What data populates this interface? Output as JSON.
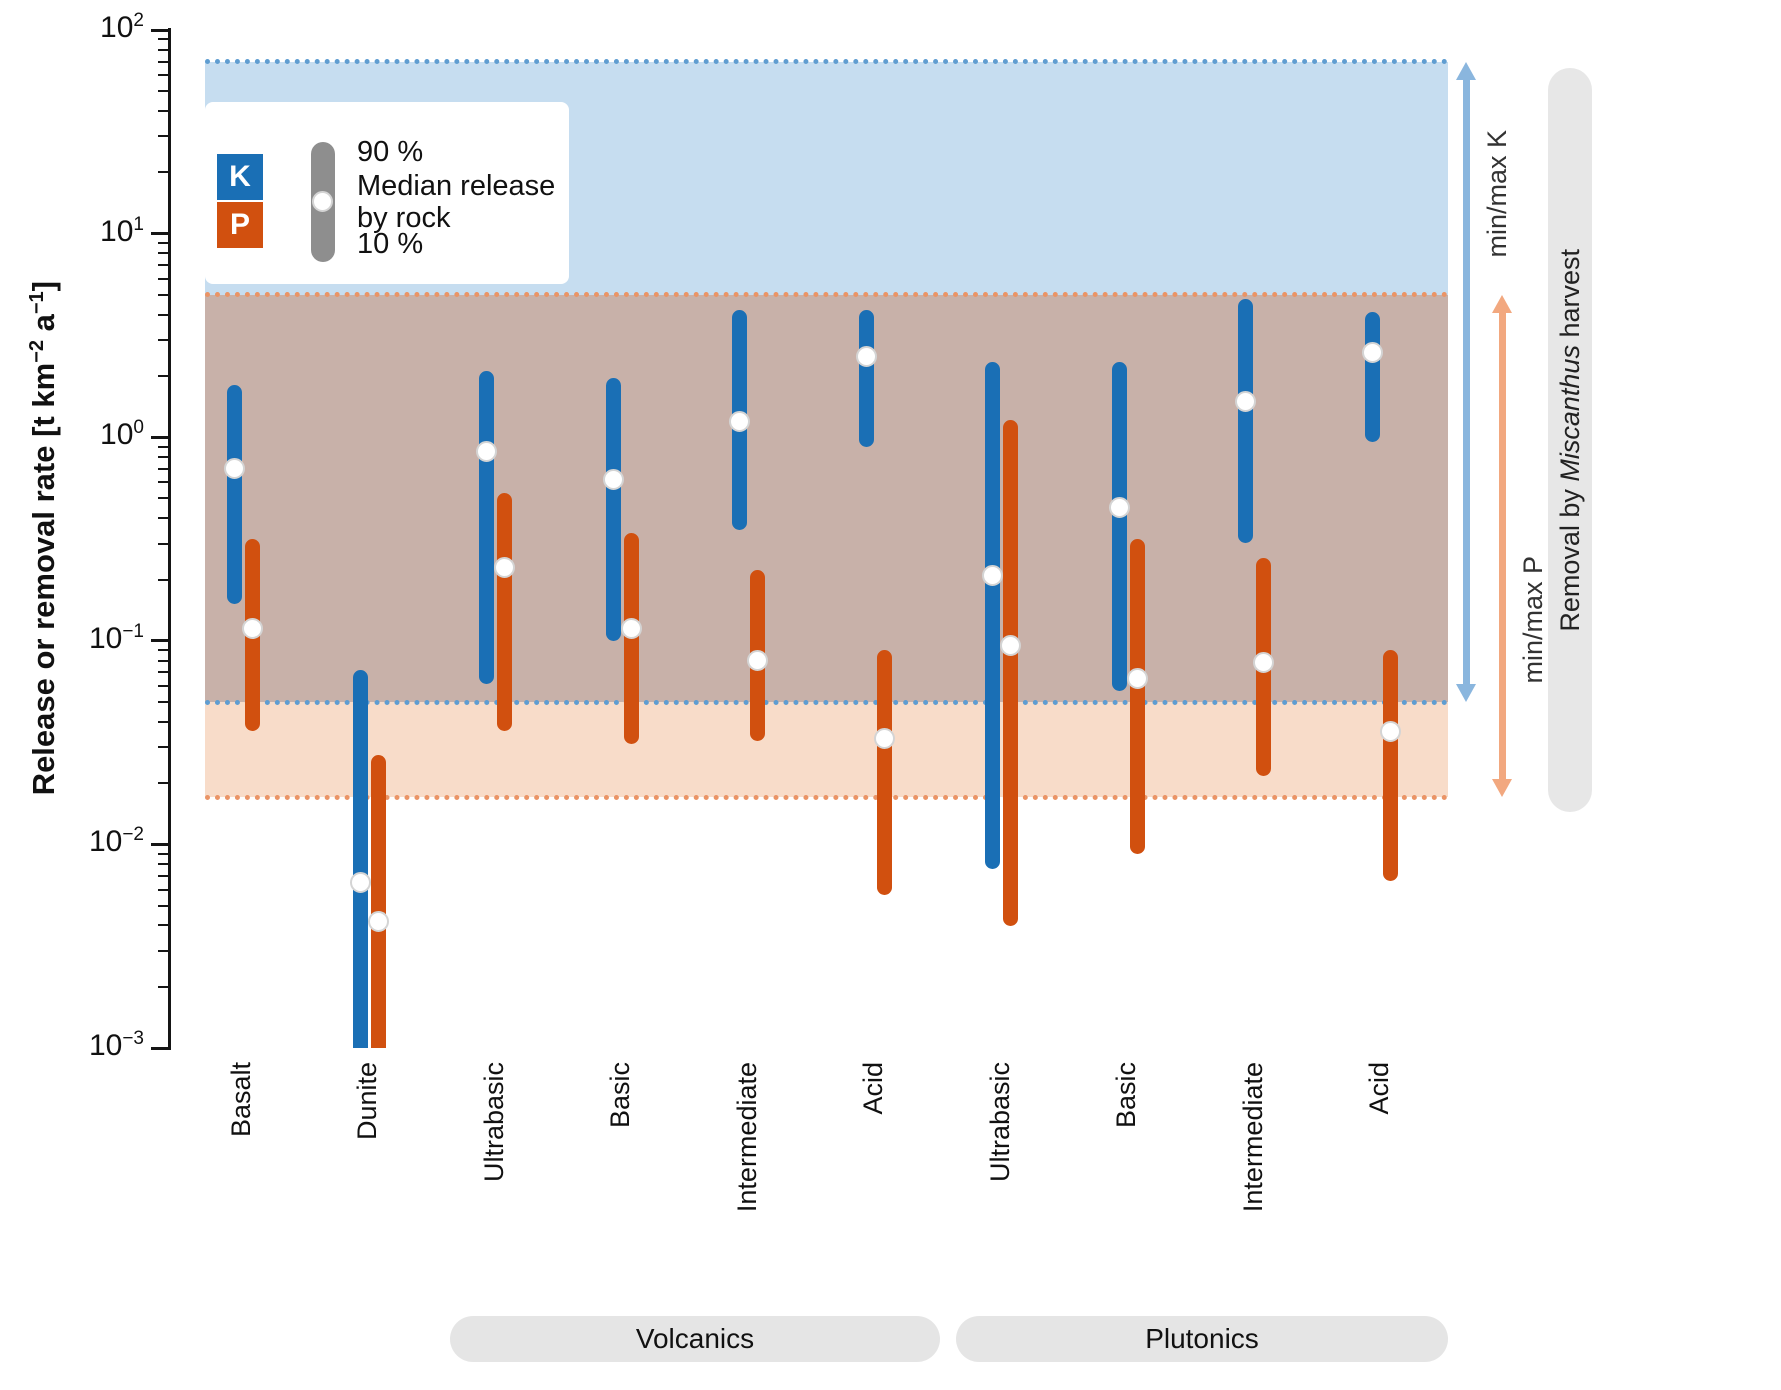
{
  "y_axis": {
    "label": {
      "pre": "Release or removal rate [t km",
      "sup1": "−2",
      "mid": " a",
      "sup2": "−1",
      "post": "]"
    },
    "tick_base": "10",
    "tick_exponents": [
      2,
      1,
      0,
      -1,
      -2,
      -3
    ]
  },
  "chart_data": {
    "type": "bar",
    "style": "vertical-range-bars-with-median-marker",
    "y_scale": "log",
    "ylim": [
      0.001,
      100
    ],
    "ylabel": "Release or removal rate [t km−2 a−1]",
    "categories": [
      "Basalt",
      "Dunite",
      "Ultrabasic",
      "Basic",
      "Intermediate",
      "Acid",
      "Ultrabasic",
      "Basic",
      "Intermediate",
      "Acid"
    ],
    "category_groups": [
      {
        "label": "Volcanics",
        "categories": [
          "Ultrabasic",
          "Basic",
          "Intermediate",
          "Acid"
        ]
      },
      {
        "label": "Plutonics",
        "categories": [
          "Ultrabasic",
          "Basic",
          "Intermediate",
          "Acid"
        ]
      }
    ],
    "series": [
      {
        "name": "K",
        "color": "#1a6fb5",
        "bars": [
          {
            "p10": 0.16,
            "median": 0.7,
            "p90": 1.7
          },
          {
            "p10": 0.0007,
            "median": 0.0065,
            "p90": 0.068
          },
          {
            "p10": 0.065,
            "median": 0.85,
            "p90": 2.0
          },
          {
            "p10": 0.105,
            "median": 0.62,
            "p90": 1.85
          },
          {
            "p10": 0.37,
            "median": 1.2,
            "p90": 4.0
          },
          {
            "p10": 0.95,
            "median": 2.5,
            "p90": 4.0
          },
          {
            "p10": 0.008,
            "median": 0.21,
            "p90": 2.2
          },
          {
            "p10": 0.06,
            "median": 0.45,
            "p90": 2.2
          },
          {
            "p10": 0.32,
            "median": 1.5,
            "p90": 4.5
          },
          {
            "p10": 1.0,
            "median": 2.6,
            "p90": 3.9
          }
        ]
      },
      {
        "name": "P",
        "color": "#d1500f",
        "bars": [
          {
            "p10": 0.038,
            "median": 0.115,
            "p90": 0.3
          },
          {
            "p10": 0.0006,
            "median": 0.0042,
            "p90": 0.026
          },
          {
            "p10": 0.038,
            "median": 0.23,
            "p90": 0.5
          },
          {
            "p10": 0.033,
            "median": 0.115,
            "p90": 0.32
          },
          {
            "p10": 0.034,
            "median": 0.08,
            "p90": 0.21
          },
          {
            "p10": 0.006,
            "median": 0.033,
            "p90": 0.085
          },
          {
            "p10": 0.0042,
            "median": 0.095,
            "p90": 1.15
          },
          {
            "p10": 0.0095,
            "median": 0.065,
            "p90": 0.3
          },
          {
            "p10": 0.023,
            "median": 0.078,
            "p90": 0.24
          },
          {
            "p10": 0.007,
            "median": 0.036,
            "p90": 0.085
          }
        ]
      }
    ],
    "bands": [
      {
        "name": "min/max K",
        "low": 0.05,
        "high": 70,
        "fill": "#c6ddf0",
        "edge": "#5f9dd1",
        "arrow": "#8ab6de"
      },
      {
        "name": "min/max P",
        "low": 0.017,
        "high": 5,
        "fill": "#f8dcc9",
        "edge": "#ea9466",
        "arrow": "#f2a87f"
      }
    ],
    "overlap_fill": "#c8b1a9"
  },
  "legend": {
    "k_label": "K",
    "p_label": "P",
    "p90_label": "90 %",
    "median_label_line1": "Median release",
    "median_label_line2": "by rock",
    "p10_label": "10 %"
  },
  "annotations": {
    "minmax_k": "min/max K",
    "minmax_p": "min/max P",
    "removal_pre": "Removal by ",
    "removal_species": "Miscanthus",
    "removal_post": " harvest"
  }
}
